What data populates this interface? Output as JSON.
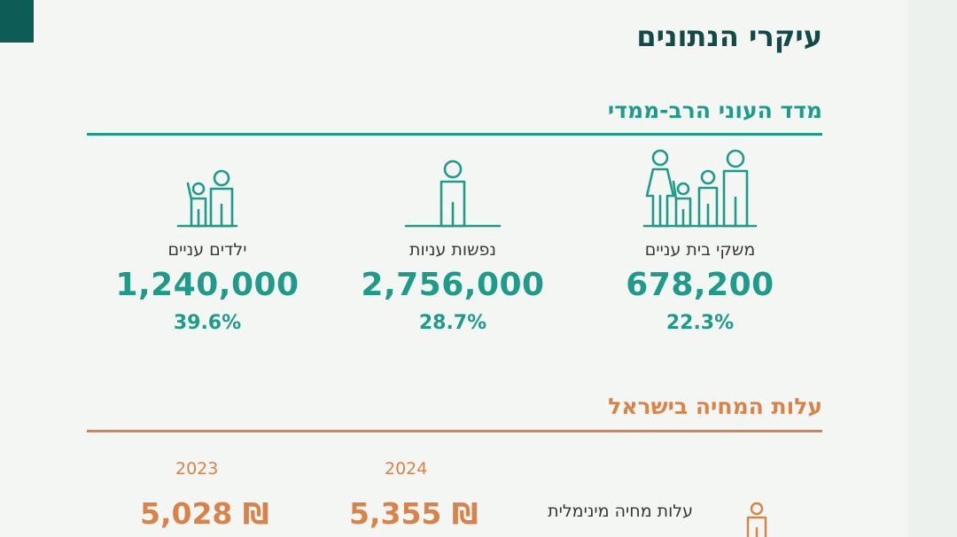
{
  "header": {
    "title": "עיקרי הנתונים"
  },
  "poverty_section": {
    "title": "מדד העוני הרב-ממדי",
    "stats": [
      {
        "label": "משקי בית עניים",
        "value": "678,200",
        "percent": "22.3%",
        "icon": "family-icon"
      },
      {
        "label": "נפשות עניות",
        "value": "2,756,000",
        "percent": "28.7%",
        "icon": "person-icon"
      },
      {
        "label": "ילדים עניים",
        "value": "1,240,000",
        "percent": "39.6%",
        "icon": "adult-child-icon"
      }
    ]
  },
  "cost_section": {
    "title": "עלות המחיה בישראל",
    "years": [
      "2024",
      "2023"
    ],
    "rows": [
      {
        "label": "עלות מחיה מינימלית",
        "values": [
          "5,355 ₪",
          "5,028 ₪"
        ],
        "icon": "person-icon"
      }
    ]
  },
  "colors": {
    "teal": "#1f9b89",
    "dark_teal": "#124a47",
    "orange": "#d8834a",
    "background": "#f4f6f3"
  }
}
